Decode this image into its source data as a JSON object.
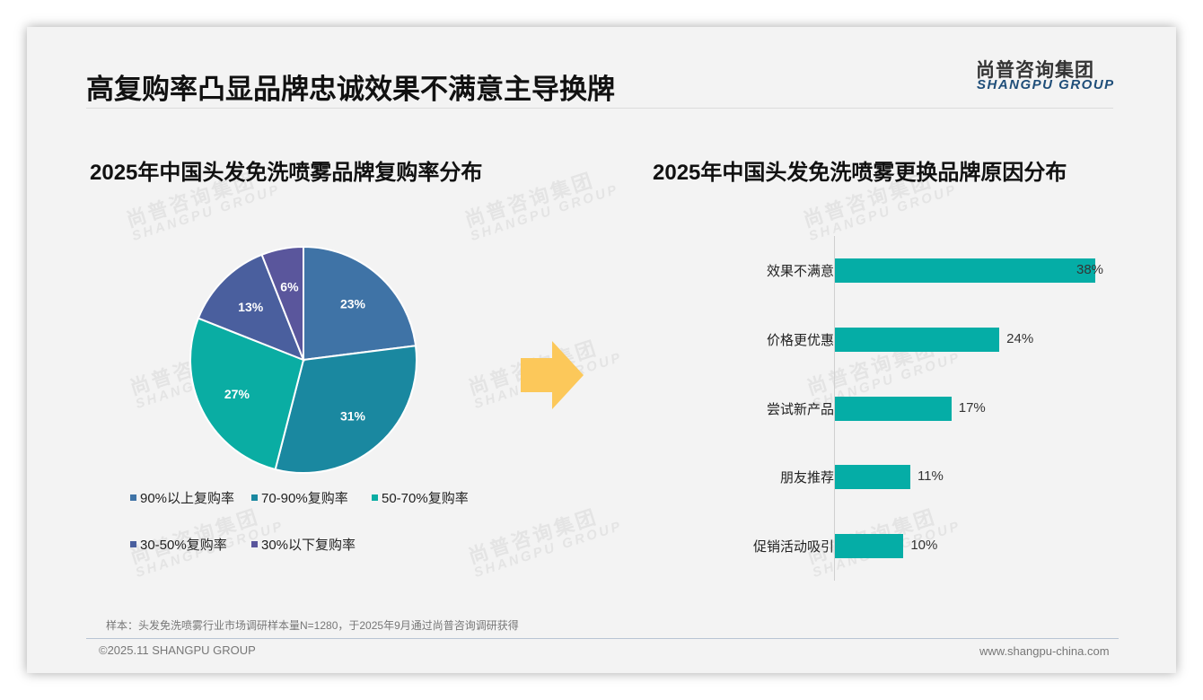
{
  "header": {
    "title": "高复购率凸显品牌忠诚效果不满意主导换牌",
    "logo_cn": "尚普咨询集团",
    "logo_en": "SHANGPU GROUP"
  },
  "watermark": {
    "cn": "尚普咨询集团",
    "en": "SHANGPU GROUP"
  },
  "left_chart": {
    "title": "2025年中国头发免洗喷雾品牌复购率分布"
  },
  "right_chart": {
    "title": "2025年中国头发免洗喷雾更换品牌原因分布"
  },
  "arrow": {
    "icon": "right-arrow-icon",
    "color": "#fcc85a"
  },
  "chart_data": [
    {
      "type": "pie",
      "title": "2025年中国头发免洗喷雾品牌复购率分布",
      "categories": [
        "90%以上复购率",
        "70-90%复购率",
        "50-70%复购率",
        "30-50%复购率",
        "30%以下复购率"
      ],
      "values": [
        23,
        31,
        27,
        13,
        6
      ],
      "labels": [
        "23%",
        "31%",
        "27%",
        "13%",
        "6%"
      ],
      "colors": [
        "#3f73a6",
        "#1a88a0",
        "#0aada3",
        "#4a5f9e",
        "#5a569c"
      ],
      "legend_position": "bottom",
      "start_angle": "12 o'clock, clockwise"
    },
    {
      "type": "bar",
      "orientation": "horizontal",
      "title": "2025年中国头发免洗喷雾更换品牌原因分布",
      "categories": [
        "效果不满意",
        "价格更优惠",
        "尝试新产品",
        "朋友推荐",
        "促销活动吸引"
      ],
      "values": [
        38,
        24,
        17,
        11,
        10
      ],
      "labels": [
        "38%",
        "24%",
        "17%",
        "11%",
        "10%"
      ],
      "color": "#05ada6",
      "xlabel": "",
      "ylabel": "",
      "grid": false
    }
  ],
  "footer": {
    "note": "样本：头发免洗喷雾行业市场调研样本量N=1280，于2025年9月通过尚普咨询调研获得",
    "copyright": "©2025.11 SHANGPU GROUP",
    "website": "www.shangpu-china.com"
  }
}
